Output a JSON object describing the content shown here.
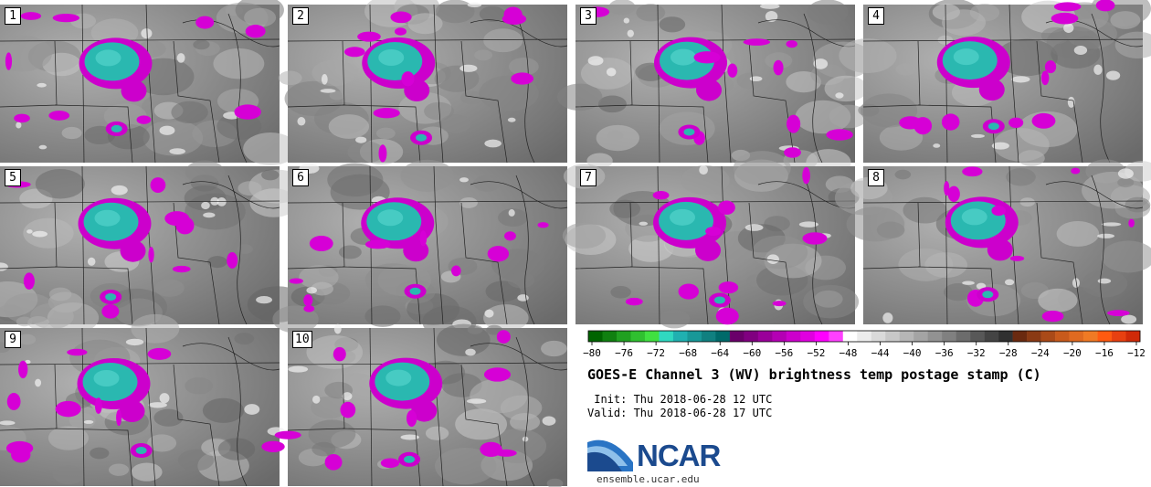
{
  "panels": [
    {
      "label": "1"
    },
    {
      "label": "2"
    },
    {
      "label": "3"
    },
    {
      "label": "4"
    },
    {
      "label": "5"
    },
    {
      "label": "6"
    },
    {
      "label": "7"
    },
    {
      "label": "8"
    },
    {
      "label": "9"
    },
    {
      "label": "10"
    }
  ],
  "colorbar": {
    "ticks": [
      "−80",
      "−76",
      "−72",
      "−68",
      "−64",
      "−60",
      "−56",
      "−52",
      "−48",
      "−44",
      "−40",
      "−36",
      "−32",
      "−28",
      "−24",
      "−20",
      "−16",
      "−12"
    ],
    "colors": [
      "#006400",
      "#108010",
      "#20a020",
      "#30c030",
      "#40e040",
      "#30d8c0",
      "#20b0b0",
      "#189898",
      "#108080",
      "#006a6a",
      "#6a006a",
      "#800080",
      "#9a009a",
      "#b400b4",
      "#cc00cc",
      "#e000e0",
      "#ff00ff",
      "#ff40ff",
      "#ffffff",
      "#ececec",
      "#dadada",
      "#c8c8c8",
      "#b6b6b6",
      "#a4a4a4",
      "#929292",
      "#808080",
      "#6c6c6c",
      "#585858",
      "#444444",
      "#303030",
      "#6a2a10",
      "#8a3a14",
      "#aa4a18",
      "#c85a1c",
      "#e06a20",
      "#f07a24",
      "#ff5a10",
      "#e84010",
      "#d02a08"
    ]
  },
  "title": "GOES-E Channel 3 (WV) brightness temp postage stamp (C)",
  "init": " Init: Thu 2018-06-28 12 UTC",
  "valid": "Valid: Thu 2018-06-28 17 UTC",
  "logo": {
    "word": "NCAR",
    "url": "ensemble.ucar.edu"
  }
}
